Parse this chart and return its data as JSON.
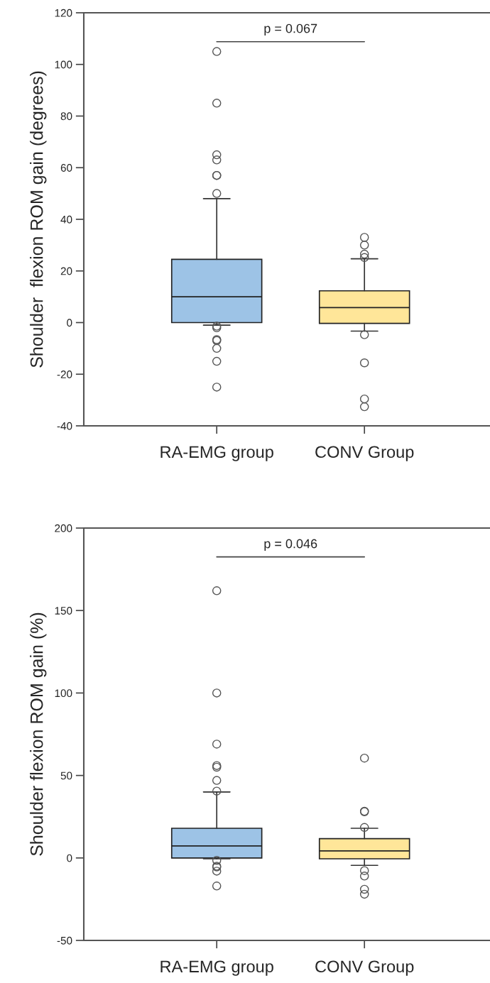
{
  "chart_data": [
    {
      "type": "box",
      "categories": [
        "RA-EMG group",
        "CONV Group"
      ],
      "ylabel": "Shoulder  flexion ROM gain (degrees)",
      "ylim": [
        -40,
        120
      ],
      "yticks": [
        -40,
        -20,
        0,
        20,
        40,
        60,
        80,
        100,
        120
      ],
      "colors": [
        "#9dc3e6",
        "#ffe699"
      ],
      "boxes": [
        {
          "low": -1,
          "q1": 0,
          "median": 10,
          "q3": 24.5,
          "high": 48,
          "outliers": [
            105,
            85,
            65,
            63,
            57,
            57,
            50,
            -1.4,
            -2,
            -6.6,
            -7,
            -10,
            -15,
            -25
          ]
        },
        {
          "low": -3.3,
          "q1": -0.3,
          "median": 5.8,
          "q3": 12.3,
          "high": 24.7,
          "outliers": [
            33,
            30,
            26.5,
            25.2,
            -4.7,
            -15.6,
            -29.6,
            -32.6
          ]
        }
      ],
      "annotations": [
        "p = 0.067"
      ]
    },
    {
      "type": "box",
      "categories": [
        "RA-EMG group",
        "CONV Group"
      ],
      "ylabel": "Shoulder flexion ROM gain (%)",
      "ylim": [
        -50,
        200
      ],
      "yticks": [
        -50,
        0,
        50,
        100,
        150,
        200
      ],
      "colors": [
        "#9dc3e6",
        "#ffe699"
      ],
      "boxes": [
        {
          "low": -0.5,
          "q1": 0,
          "median": 7.3,
          "q3": 18,
          "high": 40,
          "outliers": [
            162,
            100,
            69,
            56,
            55,
            47,
            40.5,
            -1.5,
            -5,
            -5.5,
            -8,
            -17
          ]
        },
        {
          "low": -4.5,
          "q1": -0.5,
          "median": 4.3,
          "q3": 11.7,
          "high": 18,
          "outliers": [
            60.5,
            28.3,
            28,
            18.5,
            -7.7,
            -11,
            -19,
            -22
          ]
        }
      ],
      "annotations": [
        "p = 0.046"
      ]
    }
  ]
}
